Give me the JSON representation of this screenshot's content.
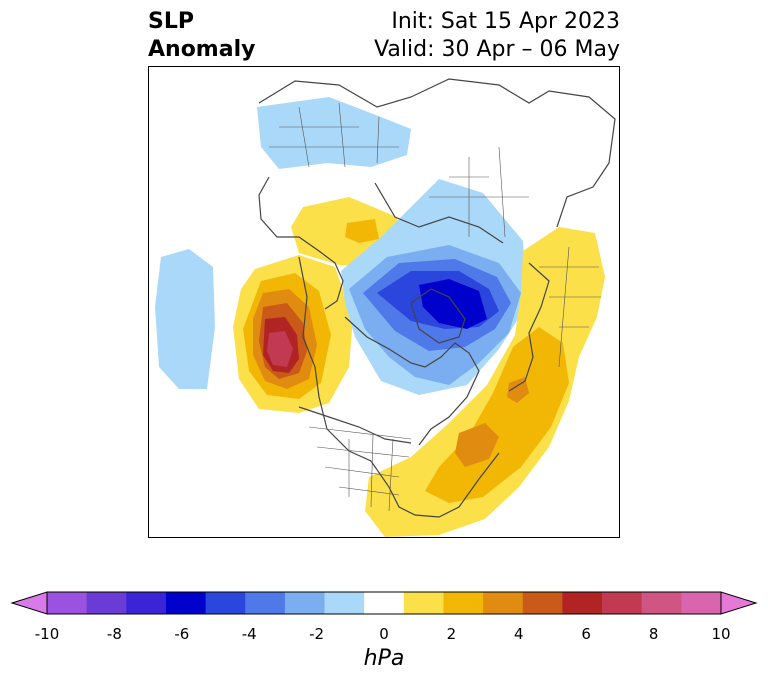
{
  "header": {
    "title_line1": "SLP",
    "title_line2": "Anomaly",
    "init_line": "Init: Sat 15 Apr 2023",
    "valid_line": "Valid: 30 Apr – 06 May"
  },
  "colorbar": {
    "unit": "hPa",
    "ticks": [
      "-10",
      "-8",
      "-6",
      "-4",
      "-2",
      "0",
      "2",
      "4",
      "6",
      "8",
      "10"
    ],
    "colors": [
      "#d97ae9",
      "#9b52e0",
      "#6b3bd6",
      "#3b24d6",
      "#0000cd",
      "#2a46dc",
      "#4f78e8",
      "#7aaef0",
      "#aad8f8",
      "#ffffff",
      "#fbe04a",
      "#f2b705",
      "#e08c10",
      "#c95a18",
      "#b02424",
      "#c23a52",
      "#cf5582",
      "#d965ae",
      "#e679d8"
    ]
  }
}
